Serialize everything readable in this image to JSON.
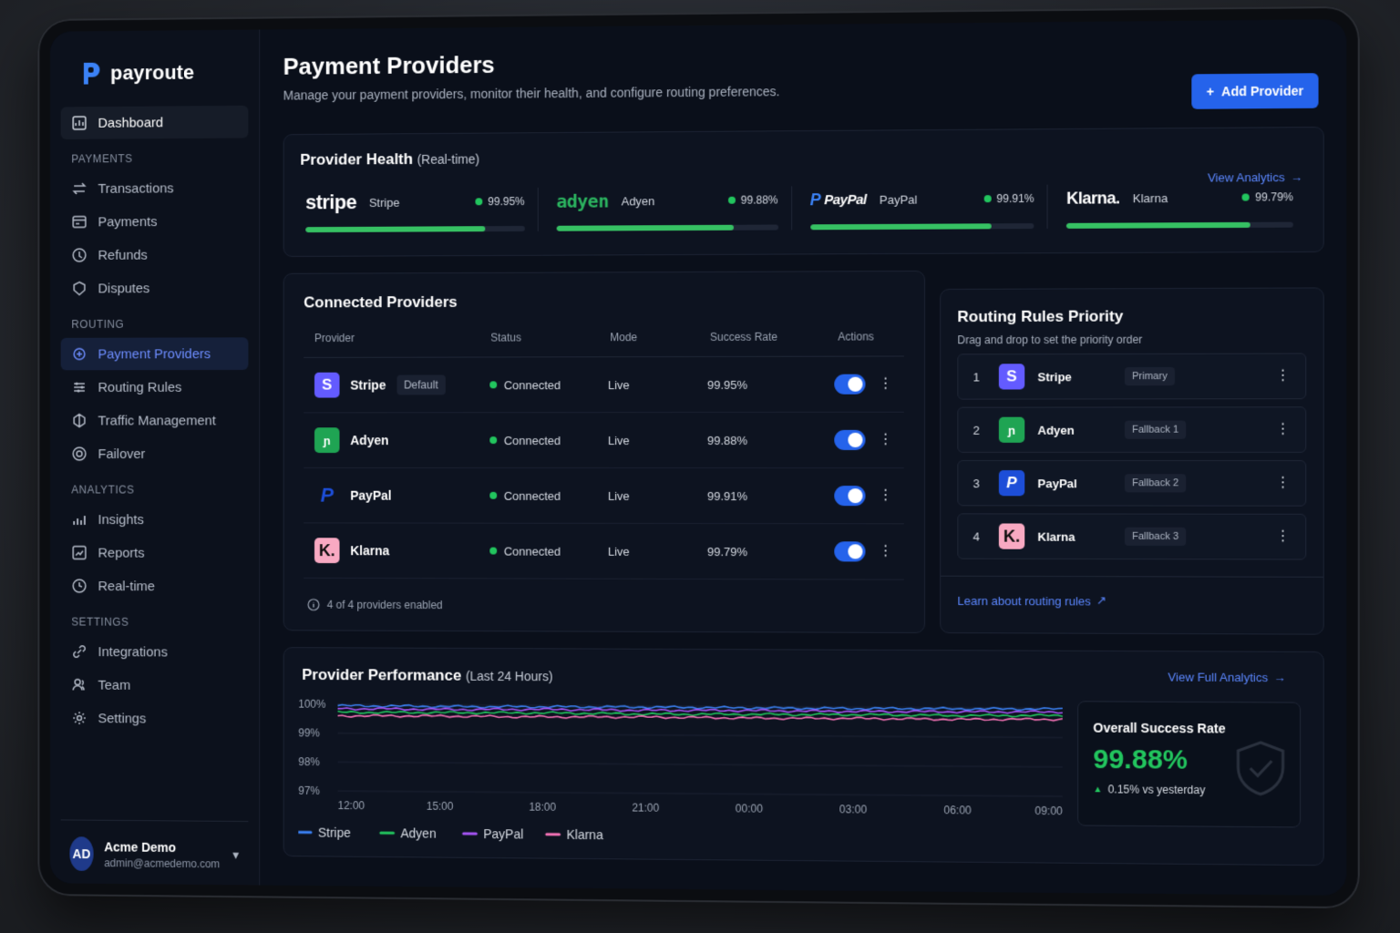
{
  "brand": {
    "name": "payroute"
  },
  "sidebar": {
    "dashboard": "Dashboard",
    "sections": [
      {
        "title": "PAYMENTS",
        "items": [
          {
            "label": "Transactions",
            "icon": "arrows-swap-icon"
          },
          {
            "label": "Payments",
            "icon": "card-icon"
          },
          {
            "label": "Refunds",
            "icon": "refund-icon"
          },
          {
            "label": "Disputes",
            "icon": "dispute-icon"
          }
        ]
      },
      {
        "title": "ROUTING",
        "items": [
          {
            "label": "Payment Providers",
            "icon": "providers-icon",
            "active": true
          },
          {
            "label": "Routing Rules",
            "icon": "routing-icon"
          },
          {
            "label": "Traffic Management",
            "icon": "traffic-icon"
          },
          {
            "label": "Failover",
            "icon": "failover-icon"
          }
        ]
      },
      {
        "title": "ANALYTICS",
        "items": [
          {
            "label": "Insights",
            "icon": "insights-icon"
          },
          {
            "label": "Reports",
            "icon": "reports-icon"
          },
          {
            "label": "Real-time",
            "icon": "realtime-icon"
          }
        ]
      },
      {
        "title": "SETTINGS",
        "items": [
          {
            "label": "Integrations",
            "icon": "link-icon"
          },
          {
            "label": "Team",
            "icon": "team-icon"
          },
          {
            "label": "Settings",
            "icon": "gear-icon"
          }
        ]
      }
    ],
    "user": {
      "initials": "AD",
      "name": "Acme Demo",
      "email": "admin@acmedemo.com"
    }
  },
  "header": {
    "title": "Payment Providers",
    "subtitle": "Manage your payment providers, monitor their health, and configure routing preferences.",
    "add_button": "Add Provider"
  },
  "health": {
    "title": "Provider Health",
    "title_suffix": "(Real-time)",
    "view_link": "View Analytics",
    "providers": [
      {
        "logo": "stripe",
        "name": "Stripe",
        "pct": "99.95%",
        "fill": 0.82
      },
      {
        "logo": "adyen",
        "name": "Adyen",
        "pct": "99.88%",
        "fill": 0.8
      },
      {
        "logo": "PayPal",
        "name": "PayPal",
        "pct": "99.91%",
        "fill": 0.81
      },
      {
        "logo": "Klarna.",
        "name": "Klarna",
        "pct": "99.79%",
        "fill": 0.81
      }
    ]
  },
  "connected": {
    "title": "Connected Providers",
    "columns": [
      "Provider",
      "Status",
      "Mode",
      "Success Rate",
      "Actions"
    ],
    "rows": [
      {
        "logo": "S",
        "name": "Stripe",
        "tag": "Default",
        "status": "Connected",
        "mode": "Live",
        "rate": "99.95%",
        "enabled": true
      },
      {
        "logo": "ɲ",
        "name": "Adyen",
        "tag": "",
        "status": "Connected",
        "mode": "Live",
        "rate": "99.88%",
        "enabled": true
      },
      {
        "logo": "P",
        "name": "PayPal",
        "tag": "",
        "status": "Connected",
        "mode": "Live",
        "rate": "99.91%",
        "enabled": true
      },
      {
        "logo": "K.",
        "name": "Klarna",
        "tag": "",
        "status": "Connected",
        "mode": "Live",
        "rate": "99.79%",
        "enabled": true
      }
    ],
    "footnote": "4 of 4 providers enabled"
  },
  "routing": {
    "title": "Routing Rules Priority",
    "subtitle": "Drag and drop to set the priority order",
    "rules": [
      {
        "num": "1",
        "logo": "S",
        "name": "Stripe",
        "tag": "Primary"
      },
      {
        "num": "2",
        "logo": "ɲ",
        "name": "Adyen",
        "tag": "Fallback 1"
      },
      {
        "num": "3",
        "logo": "P",
        "name": "PayPal",
        "tag": "Fallback 2"
      },
      {
        "num": "4",
        "logo": "K.",
        "name": "Klarna",
        "tag": "Fallback 3"
      }
    ],
    "learn_link": "Learn about routing rules"
  },
  "performance": {
    "title": "Provider Performance",
    "title_suffix": "(Last 24 Hours)",
    "view_link": "View Full Analytics",
    "summary": {
      "title": "Overall Success Rate",
      "value": "99.88%",
      "delta": "0.15% vs yesterday"
    }
  },
  "colors": {
    "stripe": "#3b82f6",
    "adyen": "#22c55e",
    "paypal": "#a855f7",
    "klarna": "#f472b6",
    "accent": "#2563eb"
  },
  "chart_data": {
    "type": "line",
    "title": "Provider Performance",
    "x": [
      "12:00",
      "15:00",
      "18:00",
      "21:00",
      "00:00",
      "03:00",
      "06:00",
      "09:00"
    ],
    "y_ticks": [
      "100%",
      "99%",
      "98%",
      "97%"
    ],
    "ylim": [
      97,
      100
    ],
    "legend": "bottom",
    "series": [
      {
        "name": "Stripe",
        "color": "#3b82f6",
        "values": [
          99.95,
          99.94,
          99.95,
          99.96,
          99.95,
          99.95,
          99.96,
          99.97
        ]
      },
      {
        "name": "Adyen",
        "color": "#22c55e",
        "values": [
          99.72,
          99.73,
          99.74,
          99.72,
          99.73,
          99.74,
          99.73,
          99.75
        ]
      },
      {
        "name": "PayPal",
        "color": "#a855f7",
        "values": [
          99.85,
          99.84,
          99.86,
          99.85,
          99.86,
          99.85,
          99.86,
          99.87
        ]
      },
      {
        "name": "Klarna",
        "color": "#f472b6",
        "values": [
          99.6,
          99.61,
          99.6,
          99.62,
          99.6,
          99.61,
          99.6,
          99.62
        ]
      }
    ]
  }
}
